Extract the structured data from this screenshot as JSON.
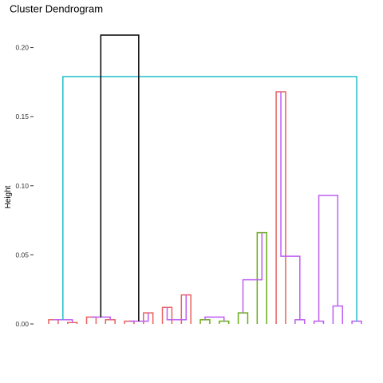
{
  "chart_data": {
    "type": "dendrogram",
    "title": "Cluster Dendrogram",
    "ylabel": "Height",
    "xlabel": "",
    "ylim": [
      0,
      0.215
    ],
    "yticks": [
      0.0,
      0.05,
      0.1,
      0.15,
      0.2
    ],
    "ytick_labels": [
      "0.00",
      "0.05",
      "0.10",
      "0.15",
      "0.20"
    ],
    "grid": false,
    "leaf_count": 34,
    "colors": {
      "root": "#000000",
      "cluster1": "#E7625F",
      "cluster2": "#6AAB1B",
      "cluster3": "#1EBFCB",
      "cluster4": "#BF5EF2"
    },
    "merges": [
      {
        "cluster": "cluster1",
        "left": 0,
        "right": 1,
        "height": 0.003
      },
      {
        "cluster": "cluster1",
        "left": 2,
        "right": 3,
        "height": 0.001
      },
      {
        "cluster": "cluster1",
        "left": 4,
        "right": 5,
        "height": 0.005
      },
      {
        "cluster": "cluster1",
        "left": 6,
        "right": 7,
        "height": 0.003
      },
      {
        "cluster": "cluster1",
        "left": 8,
        "right": 9,
        "height": 0.002
      },
      {
        "cluster": "cluster1",
        "left": 10,
        "right": 11,
        "height": 0.008
      },
      {
        "cluster": "cluster1",
        "left": 12,
        "right": 13,
        "height": 0.012
      },
      {
        "cluster": "cluster1",
        "left": 14,
        "right": 15,
        "height": 0.021
      },
      {
        "cluster": "cluster2",
        "left": 16,
        "right": 17,
        "height": 0.003
      },
      {
        "cluster": "cluster2",
        "left": 18,
        "right": 19,
        "height": 0.002
      },
      {
        "cluster": "cluster2",
        "left": 20,
        "right": 21,
        "height": 0.008
      },
      {
        "cluster": "cluster2",
        "left": 22,
        "right": 23,
        "height": 0.066
      },
      {
        "cluster": "cluster1",
        "left": 24,
        "right": 25,
        "height": 0.168
      },
      {
        "cluster": "cluster4",
        "left": 26,
        "right": 27,
        "height": 0.003
      },
      {
        "cluster": "cluster4",
        "left": 28,
        "right": 29,
        "height": 0.002
      },
      {
        "cluster": "cluster4",
        "left": 30,
        "right": 31,
        "height": 0.013
      },
      {
        "cluster": "cluster4",
        "left": 32,
        "right": 33,
        "height": 0.002
      },
      {
        "cluster": "cluster4",
        "left": 34,
        "right": 35,
        "height": 0.003
      },
      {
        "cluster": "cluster4",
        "left": 36,
        "right": 37,
        "height": 0.005
      },
      {
        "cluster": "cluster4",
        "left": 38,
        "right": 39,
        "height": 0.002
      },
      {
        "cluster": "cluster4",
        "left": 40,
        "right": 41,
        "height": 0.003
      },
      {
        "cluster": "cluster4",
        "left": 42,
        "right": 43,
        "height": 0.005
      },
      {
        "cluster": "cluster4",
        "left": 44,
        "right": 45,
        "height": 0.032
      },
      {
        "cluster": "cluster4",
        "left": 46,
        "right": 47,
        "height": 0.049
      },
      {
        "cluster": "cluster4",
        "left": 48,
        "right": 49,
        "height": 0.093
      },
      {
        "cluster": "cluster3",
        "left": 50,
        "right": 51,
        "height": 0.179
      },
      {
        "cluster": "root",
        "left": 52,
        "right": 53,
        "height": 0.209
      }
    ]
  }
}
